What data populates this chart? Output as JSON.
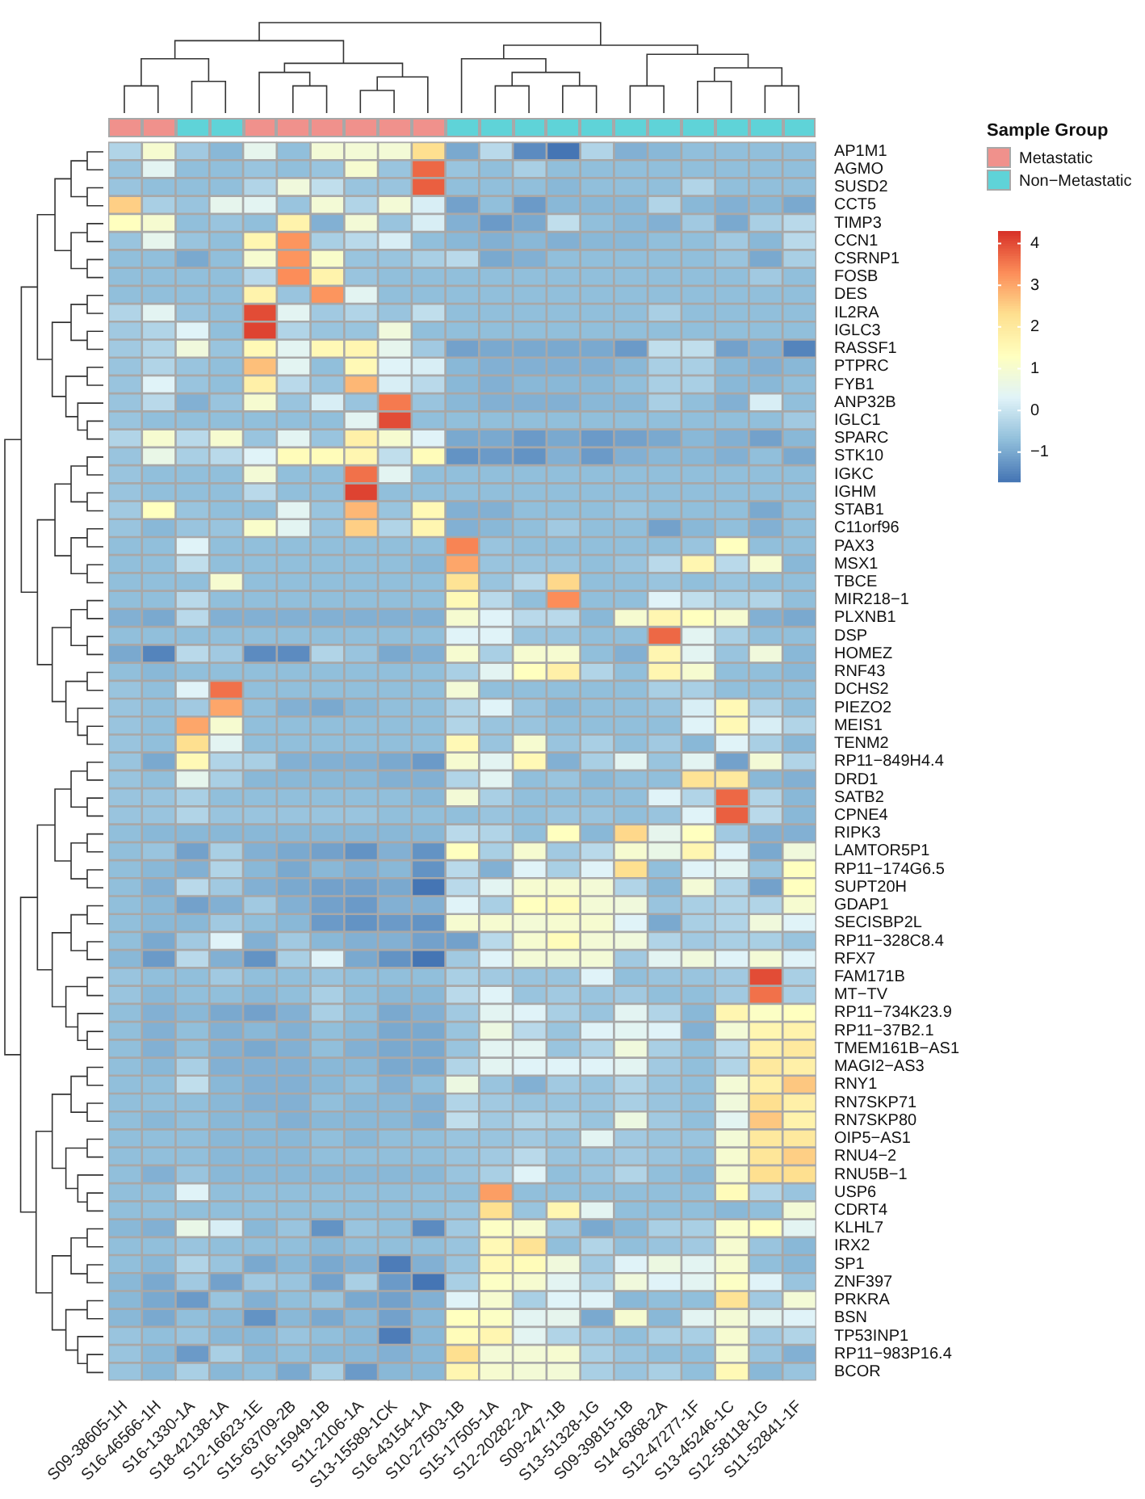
{
  "chart_data": {
    "type": "heatmap",
    "legend_title": "Sample Group",
    "categories": [
      "S09-38605-1H",
      "S16-46566-1H",
      "S16-1330-1A",
      "S18-42138-1A",
      "S12-16623-1E",
      "S15-63709-2B",
      "S16-15949-1B",
      "S11-2106-1A",
      "S13-15589-1CK",
      "S16-43154-1A",
      "S10-27503-1B",
      "S15-17505-1A",
      "S12-20282-2A",
      "S09-247-1B",
      "S13-51328-1G",
      "S09-39815-1B",
      "S14-6368-2A",
      "S12-47277-1F",
      "S13-45246-1C",
      "S12-58118-1G",
      "S11-52841-1F"
    ],
    "y_categories": [
      "AP1M1",
      "AGMO",
      "SUSD2",
      "CCT5",
      "TIMP3",
      "CCN1",
      "CSRNP1",
      "FOSB",
      "DES",
      "IL2RA",
      "IGLC3",
      "RASSF1",
      "PTPRC",
      "FYB1",
      "ANP32B",
      "IGLC1",
      "SPARC",
      "STK10",
      "IGKC",
      "IGHM",
      "STAB1",
      "C11orf96",
      "PAX3",
      "MSX1",
      "TBCE",
      "MIR218−1",
      "PLXNB1",
      "DSP",
      "HOMEZ",
      "RNF43",
      "DCHS2",
      "PIEZO2",
      "MEIS1",
      "TENM2",
      "RP11−849H4.4",
      "DRD1",
      "SATB2",
      "CPNE4",
      "RIPK3",
      "LAMTOR5P1",
      "RP11−174G6.5",
      "SUPT20H",
      "GDAP1",
      "SECISBP2L",
      "RP11−328C8.4",
      "RFX7",
      "FAM171B",
      "MT−TV",
      "RP11−734K23.9",
      "RP11−37B2.1",
      "TMEM161B−AS1",
      "MAGI2−AS3",
      "RNY1",
      "RN7SKP71",
      "RN7SKP80",
      "OIP5−AS1",
      "RNU4−2",
      "RNU5B−1",
      "USP6",
      "CDRT4",
      "KLHL7",
      "IRX2",
      "SP1",
      "ZNF397",
      "PRKRA",
      "BSN",
      "TP53INP1",
      "RP11−983P16.4",
      "BCOR"
    ],
    "annotations": [
      "Metastatic",
      "Non−Metastatic"
    ],
    "colors": [
      "#f0918c",
      "#f0918c",
      "#5fd3d8",
      "#5fd3d8",
      "#f0918c",
      "#f0918c",
      "#f0918c",
      "#f0918c",
      "#f0918c",
      "#f0918c",
      "#5fd3d8",
      "#5fd3d8",
      "#5fd3d8",
      "#5fd3d8",
      "#5fd3d8",
      "#5fd3d8",
      "#5fd3d8",
      "#5fd3d8",
      "#5fd3d8",
      "#5fd3d8",
      "#5fd3d8"
    ],
    "clim": [
      -1.7,
      4.3
    ],
    "cticks": [
      -1,
      0,
      1,
      2,
      3,
      4
    ],
    "cells": [
      [
        -0.3,
        1.0,
        -0.5,
        -0.8,
        0.5,
        -0.7,
        0.9,
        0.9,
        0.9,
        2.3,
        -1.0,
        -0.2,
        -1.4,
        -1.7,
        -0.3,
        -0.9,
        -0.8,
        -0.7,
        -0.7,
        -0.7,
        -0.7
      ],
      [
        -0.6,
        0.4,
        -0.7,
        -0.7,
        -0.6,
        -0.7,
        -0.6,
        1.0,
        -0.6,
        3.7,
        -0.6,
        -0.7,
        -0.4,
        -0.7,
        -0.7,
        -0.7,
        -0.7,
        -0.7,
        -0.7,
        -0.7,
        -0.7
      ],
      [
        -0.6,
        -0.7,
        -0.7,
        -0.7,
        -0.3,
        0.8,
        -0.1,
        -0.6,
        -0.6,
        3.8,
        -0.7,
        -0.7,
        -0.7,
        -0.8,
        -0.7,
        -0.7,
        -0.7,
        -0.3,
        -0.7,
        -0.7,
        -0.7
      ],
      [
        2.5,
        -0.4,
        -0.6,
        0.5,
        0.4,
        -0.6,
        0.9,
        -0.3,
        0.9,
        0.2,
        -1.1,
        -0.7,
        -1.2,
        -0.8,
        -0.8,
        -0.8,
        -0.3,
        -0.8,
        -0.9,
        -0.8,
        -1.0
      ],
      [
        1.3,
        1.0,
        -0.7,
        -0.6,
        -0.7,
        1.7,
        -0.9,
        0.9,
        -0.6,
        0.2,
        -0.9,
        -1.2,
        -1.0,
        -0.1,
        -0.7,
        -0.8,
        -0.9,
        -0.5,
        -1.0,
        -0.4,
        -0.2
      ],
      [
        -0.6,
        0.5,
        -0.6,
        -0.7,
        1.6,
        3.2,
        -0.4,
        -0.2,
        0.2,
        -0.7,
        -0.8,
        -0.9,
        -0.8,
        -0.9,
        -0.8,
        -0.8,
        -0.7,
        -0.7,
        -0.5,
        -0.8,
        -0.2
      ],
      [
        -0.7,
        -0.7,
        -1.0,
        -0.7,
        1.0,
        3.2,
        1.1,
        -0.6,
        -0.6,
        -0.4,
        -0.2,
        -1.0,
        -0.9,
        -0.7,
        -0.7,
        -0.7,
        -0.7,
        -0.7,
        -0.6,
        -1.0,
        -0.4
      ],
      [
        -0.7,
        -0.7,
        -0.7,
        -0.7,
        -0.2,
        3.3,
        1.7,
        -0.6,
        -0.7,
        -0.7,
        -0.7,
        -0.7,
        -0.7,
        -0.7,
        -0.7,
        -0.7,
        -0.7,
        -0.7,
        -0.7,
        -0.5,
        -0.7
      ],
      [
        -0.7,
        -0.7,
        -0.7,
        -0.7,
        1.7,
        -0.6,
        3.2,
        0.4,
        -0.7,
        -0.7,
        -0.7,
        -0.7,
        -0.7,
        -0.7,
        -0.7,
        -0.7,
        -0.7,
        -0.7,
        -0.7,
        -0.7,
        -0.7
      ],
      [
        -0.3,
        0.4,
        -0.6,
        -0.7,
        4.0,
        0.4,
        -0.5,
        -0.3,
        -0.6,
        -0.1,
        -0.7,
        -0.7,
        -0.7,
        -0.7,
        -0.7,
        -0.7,
        -0.4,
        -0.7,
        -0.7,
        -0.7,
        -0.7
      ],
      [
        -0.5,
        -0.3,
        0.3,
        -0.7,
        4.1,
        -0.3,
        -0.6,
        -0.6,
        0.8,
        -0.7,
        -0.7,
        -0.7,
        -0.7,
        -0.7,
        -0.7,
        -0.7,
        -0.7,
        -0.7,
        -0.7,
        -0.7,
        -0.7
      ],
      [
        -0.5,
        -0.3,
        0.8,
        -0.6,
        1.5,
        0.4,
        1.5,
        1.6,
        0.5,
        -0.5,
        -1.1,
        -1.0,
        -1.0,
        -1.0,
        -1.0,
        -1.2,
        -0.1,
        -0.1,
        -1.1,
        -0.9,
        -1.5
      ],
      [
        -0.6,
        -0.3,
        -0.6,
        -0.7,
        2.7,
        0.4,
        -0.7,
        1.5,
        0.3,
        0.2,
        -0.8,
        -0.9,
        -0.9,
        -0.9,
        -0.9,
        -0.8,
        -0.4,
        -0.4,
        -0.8,
        -0.9,
        -0.8
      ],
      [
        -0.6,
        0.3,
        -0.6,
        -0.7,
        1.8,
        -0.2,
        -0.6,
        2.8,
        0.2,
        -0.2,
        -0.8,
        -0.9,
        -0.8,
        -0.8,
        -0.8,
        -0.7,
        -0.4,
        -0.4,
        -0.8,
        -0.8,
        -0.7
      ],
      [
        -0.6,
        -0.2,
        -0.9,
        -0.6,
        1.0,
        -0.6,
        0.2,
        -0.6,
        3.5,
        -0.6,
        -0.8,
        -0.9,
        -0.9,
        -0.9,
        -0.8,
        -0.8,
        -0.4,
        -0.7,
        -0.9,
        0.2,
        -0.7
      ],
      [
        -0.6,
        -0.7,
        -0.7,
        -0.7,
        -0.7,
        -0.7,
        -0.7,
        0.4,
        4.0,
        -0.7,
        -0.7,
        -0.7,
        -0.7,
        -0.7,
        -0.7,
        -0.7,
        -0.7,
        -0.7,
        -0.7,
        -0.7,
        -0.5
      ],
      [
        -0.3,
        1.0,
        -0.2,
        1.0,
        -0.6,
        0.4,
        -0.6,
        1.8,
        1.0,
        0.3,
        -1.0,
        -1.0,
        -1.2,
        -1.0,
        -1.2,
        -1.1,
        -1.0,
        -0.8,
        -0.9,
        -1.1,
        -0.8
      ],
      [
        -0.6,
        0.6,
        -0.4,
        -0.2,
        0.3,
        1.4,
        1.4,
        1.6,
        -0.1,
        1.4,
        -1.3,
        -1.2,
        -1.3,
        -0.9,
        -1.2,
        -0.9,
        -0.8,
        -0.8,
        -0.9,
        -0.7,
        -1.0
      ],
      [
        -0.6,
        -0.7,
        -0.7,
        -0.7,
        0.9,
        -0.7,
        -0.7,
        3.6,
        0.4,
        -0.7,
        -0.7,
        -0.7,
        -0.7,
        -0.7,
        -0.7,
        -0.7,
        -0.7,
        -0.7,
        -0.7,
        -0.7,
        -0.7
      ],
      [
        -0.6,
        -0.7,
        -0.7,
        -0.7,
        -0.2,
        -0.7,
        -0.7,
        4.1,
        -0.7,
        -0.7,
        -0.7,
        -0.7,
        -0.7,
        -0.7,
        -0.7,
        -0.7,
        -0.7,
        -0.7,
        -0.7,
        -0.7,
        -0.7
      ],
      [
        -0.5,
        1.3,
        -0.6,
        -0.7,
        -0.7,
        0.4,
        -0.6,
        2.8,
        -0.6,
        1.5,
        -0.9,
        -0.9,
        -0.7,
        -0.7,
        -0.7,
        -0.6,
        -0.7,
        -0.7,
        -0.7,
        -1.0,
        -0.7
      ],
      [
        -0.6,
        -0.8,
        -0.6,
        -0.6,
        1.1,
        0.4,
        -0.6,
        2.5,
        -0.3,
        1.6,
        -0.9,
        -0.8,
        -0.7,
        -0.5,
        -0.7,
        -0.7,
        -1.1,
        -0.8,
        -0.7,
        -0.9,
        -0.7
      ],
      [
        -0.7,
        -0.7,
        0.3,
        -0.7,
        -0.7,
        -0.7,
        -0.7,
        -0.7,
        -0.7,
        -0.7,
        3.4,
        -0.6,
        -0.7,
        -0.7,
        -0.7,
        -0.7,
        -0.7,
        -0.6,
        1.3,
        -0.7,
        -0.7
      ],
      [
        -0.7,
        -0.7,
        -0.1,
        -0.7,
        -0.7,
        -0.7,
        -0.7,
        -0.7,
        -0.7,
        -0.8,
        3.0,
        -0.6,
        -0.6,
        -0.6,
        -0.7,
        -0.6,
        -0.2,
        1.6,
        -0.2,
        1.0,
        -0.8
      ],
      [
        -0.7,
        -0.7,
        -0.7,
        1.0,
        -0.7,
        -0.7,
        -0.7,
        -0.7,
        -0.7,
        -0.7,
        2.2,
        -0.6,
        -0.2,
        2.4,
        -0.7,
        -0.7,
        -0.6,
        -0.7,
        -0.6,
        -0.7,
        -0.7
      ],
      [
        -0.7,
        -0.7,
        -0.2,
        -0.7,
        -0.7,
        -0.7,
        -0.7,
        -0.7,
        -0.7,
        -0.7,
        1.5,
        -0.2,
        -0.7,
        3.3,
        -0.7,
        -0.7,
        0.3,
        -0.1,
        -0.4,
        -0.3,
        -0.7
      ],
      [
        -0.9,
        -1.0,
        -0.2,
        -0.9,
        -0.9,
        -0.9,
        -0.9,
        -0.9,
        -0.9,
        -0.9,
        1.0,
        0.3,
        -0.2,
        -0.2,
        -0.8,
        1.0,
        1.6,
        1.3,
        1.0,
        -0.9,
        -1.0
      ],
      [
        -0.7,
        -0.7,
        -0.7,
        -0.7,
        -0.7,
        -0.7,
        -0.7,
        -0.7,
        -0.7,
        -0.7,
        0.3,
        0.3,
        -0.6,
        -0.6,
        -0.7,
        -0.7,
        3.7,
        0.4,
        -0.4,
        -0.7,
        -0.7
      ],
      [
        -1.0,
        -1.5,
        -0.2,
        -0.5,
        -1.4,
        -1.4,
        -0.3,
        -0.6,
        -1.0,
        -0.9,
        1.0,
        -0.4,
        1.0,
        1.0,
        -0.7,
        -0.9,
        1.6,
        0.4,
        -0.6,
        0.8,
        -0.8
      ],
      [
        -0.7,
        -0.8,
        -0.7,
        -0.7,
        -0.7,
        -0.7,
        -0.7,
        -0.7,
        -0.7,
        -0.7,
        -0.4,
        0.4,
        1.3,
        1.8,
        -0.3,
        -0.7,
        1.6,
        1.0,
        -0.7,
        -0.7,
        -0.8
      ],
      [
        -0.6,
        -0.7,
        0.3,
        3.6,
        -0.7,
        -0.7,
        -0.7,
        -0.7,
        -0.7,
        -0.7,
        0.9,
        -0.7,
        -0.7,
        -0.7,
        -0.7,
        -0.7,
        -0.4,
        -0.4,
        -0.7,
        -0.7,
        -0.7
      ],
      [
        -0.6,
        -0.7,
        -0.5,
        3.0,
        -0.7,
        -0.9,
        -1.0,
        -0.8,
        -0.7,
        -0.7,
        -0.3,
        0.3,
        -0.6,
        -0.8,
        -0.7,
        -0.7,
        -0.6,
        0.2,
        1.5,
        -0.3,
        -0.7
      ],
      [
        -0.6,
        -0.7,
        3.0,
        1.0,
        -0.7,
        -0.7,
        -0.7,
        -0.7,
        -0.7,
        -0.7,
        -0.3,
        -0.6,
        -0.6,
        -0.7,
        -0.7,
        -0.7,
        -0.7,
        0.3,
        1.5,
        0.2,
        -0.3
      ],
      [
        -0.6,
        -0.7,
        2.3,
        0.4,
        -0.7,
        -0.7,
        -0.7,
        -0.7,
        -0.7,
        -0.7,
        1.5,
        -0.6,
        1.0,
        -0.6,
        -0.4,
        -0.7,
        -0.5,
        -0.8,
        0.3,
        -0.4,
        -0.8
      ],
      [
        -0.6,
        -1.0,
        1.5,
        -0.3,
        -0.4,
        -0.9,
        -0.9,
        -0.9,
        -1.0,
        -1.2,
        1.0,
        0.4,
        1.5,
        -0.9,
        -0.4,
        0.4,
        -0.6,
        0.4,
        -1.1,
        0.9,
        -0.3
      ],
      [
        -0.6,
        -0.7,
        0.5,
        -0.4,
        -0.8,
        -0.8,
        -0.8,
        -0.8,
        -0.9,
        -0.9,
        -0.3,
        0.4,
        -0.7,
        -0.6,
        -0.8,
        -0.7,
        -0.7,
        2.2,
        2.0,
        -0.8,
        -0.9
      ],
      [
        -0.6,
        -0.6,
        -0.4,
        -0.7,
        -0.7,
        -0.7,
        -0.7,
        -0.7,
        -0.7,
        -0.8,
        0.9,
        -0.4,
        -0.7,
        -0.7,
        -0.7,
        -0.7,
        0.3,
        -0.3,
        3.7,
        -0.3,
        -0.8
      ],
      [
        -0.6,
        -0.6,
        -0.3,
        -0.6,
        -0.6,
        -0.6,
        -0.6,
        -0.6,
        -0.7,
        -0.7,
        -0.7,
        -0.6,
        -0.7,
        -0.6,
        -0.6,
        -0.7,
        -0.6,
        0.3,
        3.8,
        -0.2,
        -0.8
      ],
      [
        -0.7,
        -0.8,
        -0.8,
        -0.8,
        -0.8,
        -0.8,
        -0.8,
        -0.8,
        -0.8,
        -0.8,
        -0.2,
        -0.3,
        -0.7,
        1.3,
        -0.8,
        2.4,
        0.5,
        1.3,
        -0.5,
        -0.9,
        -0.9
      ],
      [
        -0.7,
        -0.6,
        -1.1,
        -0.4,
        -0.9,
        -1.0,
        -1.1,
        -1.3,
        -0.9,
        -1.3,
        1.3,
        -0.4,
        1.0,
        -0.5,
        -0.2,
        1.0,
        0.6,
        1.6,
        0.3,
        -1.0,
        0.8
      ],
      [
        -0.7,
        -0.8,
        -0.9,
        -0.3,
        -0.8,
        -1.0,
        -0.8,
        -0.9,
        -0.8,
        -1.3,
        -0.2,
        -0.9,
        0.3,
        -0.4,
        0.3,
        2.3,
        -0.7,
        0.3,
        0.4,
        -0.6,
        1.3
      ],
      [
        -0.7,
        -0.9,
        -0.2,
        -0.5,
        -0.9,
        -1.0,
        -1.1,
        -1.1,
        -1.0,
        -1.7,
        -0.2,
        0.4,
        1.0,
        1.0,
        0.9,
        -0.3,
        -0.8,
        0.9,
        -0.3,
        -1.1,
        1.3
      ],
      [
        -0.7,
        -0.8,
        -1.1,
        -0.9,
        -0.5,
        -0.9,
        -1.1,
        -1.2,
        -0.9,
        -0.9,
        0.3,
        -0.4,
        1.3,
        1.4,
        0.9,
        0.8,
        -0.6,
        -0.4,
        -0.3,
        -0.3,
        1.0
      ],
      [
        -0.7,
        -0.8,
        -0.8,
        -0.5,
        -0.7,
        -0.8,
        -1.2,
        -1.3,
        -1.2,
        -1.3,
        1.0,
        1.0,
        0.9,
        1.0,
        1.0,
        0.3,
        -1.0,
        -0.4,
        -0.3,
        0.8,
        0.3
      ],
      [
        -0.7,
        -1.0,
        -0.5,
        0.3,
        -0.9,
        -0.5,
        -0.8,
        -0.9,
        -0.9,
        -1.1,
        -1.1,
        -0.2,
        1.0,
        1.4,
        0.9,
        0.8,
        -0.3,
        -0.5,
        -0.4,
        -0.4,
        -0.6
      ],
      [
        -0.8,
        -1.2,
        -0.2,
        -0.9,
        -1.3,
        -0.4,
        0.3,
        -1.0,
        -1.3,
        -1.7,
        -0.5,
        0.3,
        0.9,
        0.9,
        0.9,
        -0.5,
        0.4,
        0.8,
        0.3,
        0.9,
        0.3
      ],
      [
        -0.6,
        -0.7,
        -0.7,
        -0.5,
        -0.7,
        -0.7,
        -0.6,
        -0.7,
        -0.7,
        -0.7,
        -0.4,
        -0.5,
        -0.6,
        -0.6,
        0.3,
        -0.7,
        -0.6,
        -0.6,
        -0.5,
        4.0,
        -0.4
      ],
      [
        -0.6,
        -0.8,
        -0.7,
        -0.7,
        -0.8,
        -0.7,
        -0.4,
        -0.7,
        -0.8,
        -0.8,
        -0.2,
        0.3,
        -0.6,
        -0.5,
        -0.6,
        -0.5,
        -0.7,
        -0.7,
        -0.5,
        3.6,
        -0.4
      ],
      [
        -0.7,
        -0.9,
        -0.8,
        -1.0,
        -1.1,
        -0.9,
        -0.4,
        -0.7,
        -1.0,
        -0.9,
        -0.5,
        0.4,
        0.3,
        -0.4,
        -0.6,
        0.4,
        -0.3,
        -0.8,
        1.6,
        1.2,
        1.3
      ],
      [
        -0.7,
        -0.9,
        -0.7,
        -0.9,
        -0.8,
        -0.9,
        -0.7,
        -0.8,
        -1.0,
        -1.0,
        -0.6,
        0.7,
        -0.2,
        -0.6,
        0.3,
        0.4,
        0.3,
        -0.9,
        0.9,
        1.6,
        1.7
      ],
      [
        -0.7,
        -0.9,
        -0.7,
        -0.9,
        -1.0,
        -0.9,
        -0.7,
        -0.9,
        -1.0,
        -1.0,
        -0.6,
        0.4,
        0.4,
        -0.6,
        -0.3,
        0.8,
        -0.4,
        -0.7,
        -0.2,
        1.8,
        2.0
      ],
      [
        -0.7,
        -0.8,
        -0.4,
        -0.9,
        -0.9,
        -0.9,
        -0.8,
        -0.8,
        -1.0,
        -1.0,
        -0.3,
        0.4,
        0.3,
        0.3,
        0.3,
        0.4,
        -0.5,
        -0.7,
        -0.3,
        2.0,
        1.8
      ],
      [
        -0.7,
        -0.7,
        -0.1,
        -0.8,
        -0.9,
        -0.9,
        -0.8,
        -0.7,
        -0.9,
        -0.7,
        0.7,
        -0.6,
        -0.9,
        -0.5,
        -0.6,
        -0.3,
        -0.6,
        -0.7,
        0.9,
        1.8,
        2.6
      ],
      [
        -0.7,
        -0.7,
        -0.7,
        -0.8,
        -0.9,
        -0.9,
        -0.7,
        -0.8,
        -0.8,
        -0.9,
        -0.3,
        -0.5,
        -0.6,
        -0.6,
        -0.6,
        -0.4,
        -0.6,
        -0.7,
        0.8,
        2.3,
        1.8
      ],
      [
        -0.7,
        -0.8,
        -0.7,
        -0.8,
        -0.8,
        -0.9,
        -0.8,
        -0.8,
        -0.8,
        -0.9,
        -0.1,
        -0.5,
        -0.3,
        -0.4,
        -0.6,
        0.7,
        -0.5,
        -0.7,
        0.4,
        2.6,
        1.7
      ],
      [
        -0.7,
        -0.7,
        -0.7,
        -0.8,
        -0.8,
        -0.8,
        -0.7,
        -0.8,
        -0.7,
        -0.7,
        -0.6,
        -0.6,
        -0.5,
        -0.6,
        0.4,
        -0.5,
        -0.6,
        -0.6,
        0.9,
        2.0,
        2.0
      ],
      [
        -0.7,
        -0.7,
        -0.7,
        -0.8,
        -0.8,
        -0.8,
        -0.7,
        -0.7,
        -0.7,
        -0.7,
        -0.6,
        -0.5,
        -0.2,
        -0.6,
        -0.6,
        -0.5,
        -0.6,
        -0.7,
        1.0,
        2.1,
        2.5
      ],
      [
        -0.7,
        -0.9,
        -0.6,
        -0.8,
        -0.8,
        -0.8,
        -0.8,
        -0.8,
        -0.8,
        -0.8,
        -0.6,
        -0.4,
        0.3,
        -0.7,
        -0.6,
        -0.3,
        -0.7,
        -0.8,
        1.0,
        2.3,
        2.3
      ],
      [
        -0.7,
        -0.7,
        0.3,
        -0.7,
        -0.7,
        -0.7,
        -0.7,
        -0.7,
        -0.7,
        -0.7,
        -0.7,
        3.1,
        -0.7,
        -0.7,
        -0.7,
        -0.7,
        -0.7,
        -0.7,
        1.4,
        -0.3,
        -0.6
      ],
      [
        -0.7,
        -0.7,
        -0.7,
        -0.7,
        -0.7,
        -0.7,
        -0.7,
        -0.7,
        -0.7,
        -0.7,
        -0.6,
        2.3,
        -0.6,
        1.6,
        0.4,
        -0.7,
        -0.7,
        -0.7,
        -0.8,
        -0.7,
        0.9
      ],
      [
        -0.8,
        -0.9,
        0.6,
        0.2,
        -0.8,
        -0.6,
        -1.3,
        -0.6,
        -0.7,
        -1.4,
        -0.5,
        1.2,
        1.0,
        -0.5,
        -1.0,
        -0.8,
        -0.4,
        -0.4,
        1.1,
        1.3,
        0.4
      ],
      [
        -0.7,
        -0.7,
        -0.6,
        -0.7,
        -0.7,
        -0.7,
        -0.8,
        -0.7,
        -0.7,
        -0.7,
        -0.6,
        1.5,
        2.2,
        -0.7,
        -0.3,
        -0.7,
        -0.6,
        -0.5,
        1.0,
        -0.6,
        -0.8
      ],
      [
        -0.7,
        -0.8,
        -0.3,
        -0.6,
        -1.0,
        -0.8,
        -1.0,
        -0.9,
        -1.6,
        -0.9,
        -0.6,
        1.5,
        1.4,
        0.8,
        -0.5,
        0.3,
        0.7,
        0.4,
        1.0,
        -0.7,
        -0.8
      ],
      [
        -0.8,
        -1.0,
        -0.5,
        -1.1,
        -0.5,
        -0.6,
        -1.1,
        -0.4,
        -1.2,
        -1.8,
        -0.4,
        1.2,
        1.0,
        0.4,
        -0.3,
        0.8,
        0.3,
        0.4,
        1.2,
        0.3,
        -0.6
      ],
      [
        -0.8,
        -1.0,
        -1.2,
        -0.6,
        -0.9,
        -0.7,
        -0.6,
        -1.0,
        -1.1,
        -0.9,
        0.3,
        1.0,
        -0.4,
        0.3,
        0.3,
        -0.8,
        -0.7,
        -0.7,
        2.2,
        -0.5,
        0.9
      ],
      [
        -0.8,
        -1.0,
        -0.7,
        -0.8,
        -1.3,
        -0.8,
        -1.0,
        -0.8,
        -1.1,
        -0.8,
        1.3,
        1.2,
        0.4,
        0.5,
        -1.0,
        1.0,
        -0.8,
        0.4,
        0.9,
        0.4,
        0.3
      ],
      [
        -0.6,
        -0.7,
        -0.6,
        -0.8,
        -0.8,
        -0.6,
        -0.7,
        -0.8,
        -1.6,
        -0.8,
        1.4,
        1.6,
        0.4,
        -0.3,
        -0.5,
        -0.7,
        -0.4,
        -0.4,
        1.0,
        -0.5,
        -0.3
      ],
      [
        -0.6,
        -0.8,
        -1.2,
        -0.4,
        -0.8,
        -0.7,
        -0.8,
        -0.8,
        -0.9,
        -0.8,
        2.3,
        0.9,
        0.9,
        1.0,
        -0.4,
        -0.6,
        -0.7,
        -0.7,
        1.0,
        -0.6,
        -0.9
      ],
      [
        -0.6,
        -0.8,
        -0.4,
        -0.8,
        -0.7,
        -1.0,
        -0.4,
        -1.2,
        -0.8,
        -0.8,
        1.6,
        1.0,
        0.9,
        0.9,
        -0.4,
        -0.6,
        -0.4,
        -0.7,
        1.5,
        -0.8,
        -0.6
      ]
    ]
  }
}
